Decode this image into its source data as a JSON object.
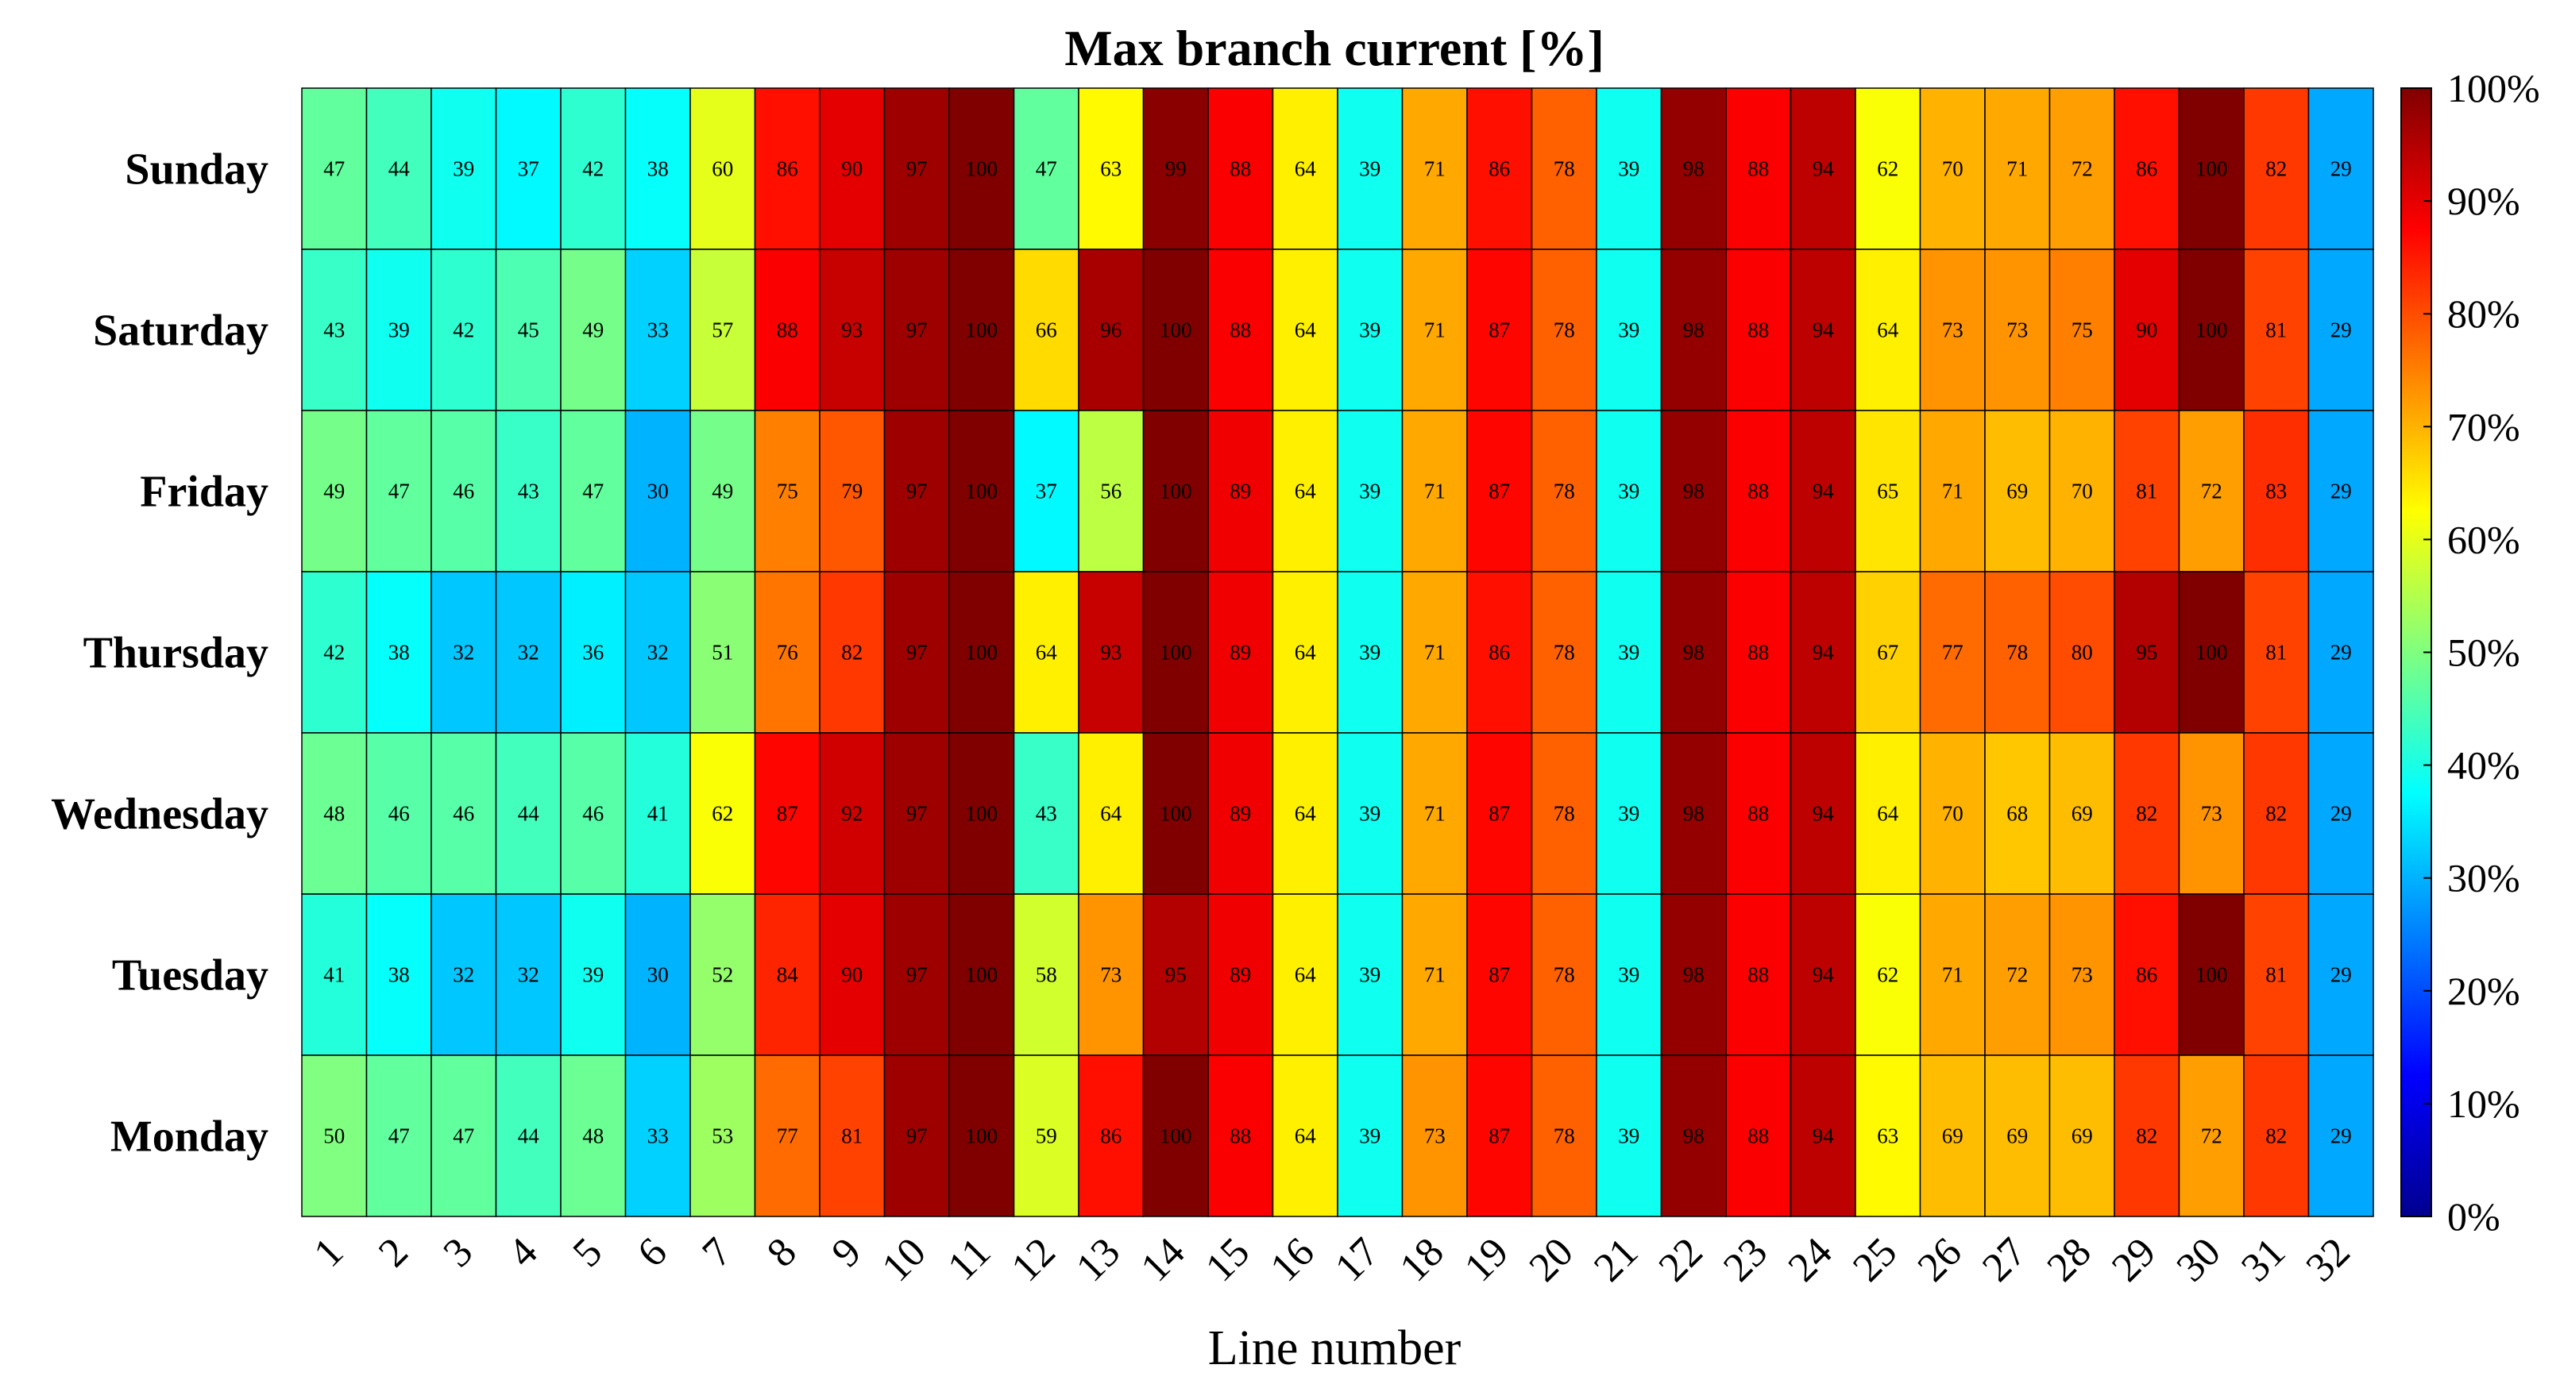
{
  "chart_data": {
    "type": "heatmap",
    "title": "Max branch current [%]",
    "xlabel": "Line number",
    "ylabel": "",
    "x": [
      "1",
      "2",
      "3",
      "4",
      "5",
      "6",
      "7",
      "8",
      "9",
      "10",
      "11",
      "12",
      "13",
      "14",
      "15",
      "16",
      "17",
      "18",
      "19",
      "20",
      "21",
      "22",
      "23",
      "24",
      "25",
      "26",
      "27",
      "28",
      "29",
      "30",
      "31",
      "32"
    ],
    "y": [
      "Sunday",
      "Saturday",
      "Friday",
      "Thursday",
      "Wednesday",
      "Tuesday",
      "Monday"
    ],
    "values": [
      [
        47,
        44,
        39,
        37,
        42,
        38,
        60,
        86,
        90,
        97,
        100,
        47,
        63,
        99,
        88,
        64,
        39,
        71,
        86,
        78,
        39,
        98,
        88,
        94,
        62,
        70,
        71,
        72,
        86,
        100,
        82,
        29
      ],
      [
        43,
        39,
        42,
        45,
        49,
        33,
        57,
        88,
        93,
        97,
        100,
        66,
        96,
        100,
        88,
        64,
        39,
        71,
        87,
        78,
        39,
        98,
        88,
        94,
        64,
        73,
        73,
        75,
        90,
        100,
        81,
        29
      ],
      [
        49,
        47,
        46,
        43,
        47,
        30,
        49,
        75,
        79,
        97,
        100,
        37,
        56,
        100,
        89,
        64,
        39,
        71,
        87,
        78,
        39,
        98,
        88,
        94,
        65,
        71,
        69,
        70,
        81,
        72,
        83,
        29
      ],
      [
        42,
        38,
        32,
        32,
        36,
        32,
        51,
        76,
        82,
        97,
        100,
        64,
        93,
        100,
        89,
        64,
        39,
        71,
        86,
        78,
        39,
        98,
        88,
        94,
        67,
        77,
        78,
        80,
        95,
        100,
        81,
        29
      ],
      [
        48,
        46,
        46,
        44,
        46,
        41,
        62,
        87,
        92,
        97,
        100,
        43,
        64,
        100,
        89,
        64,
        39,
        71,
        87,
        78,
        39,
        98,
        88,
        94,
        64,
        70,
        68,
        69,
        82,
        73,
        82,
        29
      ],
      [
        41,
        38,
        32,
        32,
        39,
        30,
        52,
        84,
        90,
        97,
        100,
        58,
        73,
        95,
        89,
        64,
        39,
        71,
        87,
        78,
        39,
        98,
        88,
        94,
        62,
        71,
        72,
        73,
        86,
        100,
        81,
        29
      ],
      [
        50,
        47,
        47,
        44,
        48,
        33,
        53,
        77,
        81,
        97,
        100,
        59,
        86,
        100,
        88,
        64,
        39,
        73,
        87,
        78,
        39,
        98,
        88,
        94,
        63,
        69,
        69,
        69,
        82,
        72,
        82,
        29
      ]
    ],
    "colorbar": {
      "min": 0,
      "max": 100,
      "colormap": "jet",
      "ticks": [
        "0%",
        "10%",
        "20%",
        "30%",
        "40%",
        "50%",
        "60%",
        "70%",
        "80%",
        "90%",
        "100%"
      ]
    }
  }
}
